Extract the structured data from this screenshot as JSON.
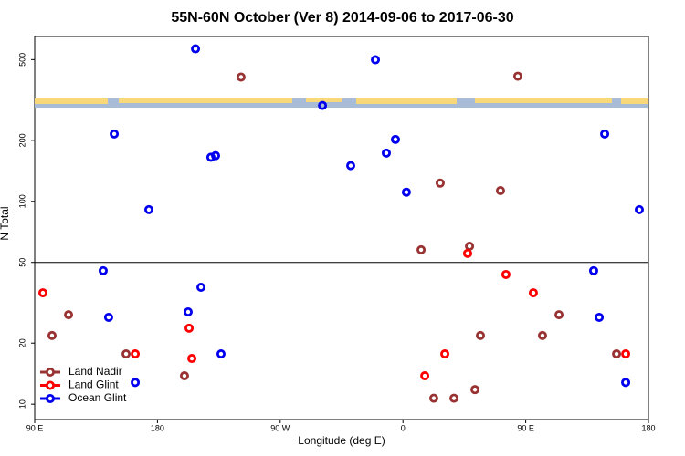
{
  "chart_data": {
    "type": "scatter",
    "title": "55N-60N October (Ver 8)   2014-09-06 to 2017-06-30",
    "xlabel": "Longitude (deg E)",
    "ylabel": "N Total",
    "xlim": [
      90,
      540
    ],
    "ylim": [
      8.4,
      650
    ],
    "ylog": true,
    "xticks": [
      {
        "value": 90,
        "label": "90 E"
      },
      180,
      {
        "value": 270,
        "label": "90 W"
      },
      {
        "value": 360,
        "label": "0"
      },
      {
        "value": 450,
        "label": "90 E"
      },
      {
        "value": 540,
        "label": "180"
      }
    ],
    "yticks": [
      10,
      20,
      50,
      100,
      200,
      500
    ],
    "hline": 50,
    "legend": "lower left",
    "series": [
      {
        "name": "Land Nadir",
        "color": "#993333",
        "x": [
          241.3,
          444.2,
          387.3,
          431.5,
          373.3,
          408.8,
          114.8,
          102.7,
          157,
          199.8,
          416.8,
          462.3,
          474.4,
          516.6,
          382.6,
          397.4,
          412.8
        ],
        "values": [
          410,
          414,
          123,
          113,
          57.7,
          60.1,
          27.6,
          21.8,
          17.7,
          13.8,
          21.8,
          21.8,
          27.6,
          17.7,
          10.7,
          10.7,
          11.8
        ]
      },
      {
        "name": "Land Glint",
        "color": "#ff0000",
        "x": [
          96,
          163.7,
          203.2,
          205.2,
          407.4,
          435.5,
          455.6,
          390.7,
          376,
          523.3
        ],
        "values": [
          35.4,
          17.7,
          23.7,
          16.8,
          55.4,
          43.6,
          35.4,
          17.7,
          13.8,
          17.7
        ]
      },
      {
        "name": "Ocean Glint",
        "color": "#0000ee",
        "x": [
          207.9,
          339.8,
          301,
          148.3,
          354.5,
          507.9,
          219.2,
          222.6,
          347.8,
          321.7,
          362.5,
          173.7,
          533.3,
          140.2,
          499.8,
          211.9,
          202.5,
          144.2,
          503.9,
          226.6,
          163.7,
          523.3
        ],
        "values": [
          565,
          499,
          297,
          215,
          202,
          215,
          165,
          168,
          173,
          150,
          111,
          91,
          91,
          45.5,
          45.5,
          37.7,
          28.5,
          26.8,
          26.8,
          17.7,
          12.8,
          12.8
        ]
      }
    ]
  }
}
